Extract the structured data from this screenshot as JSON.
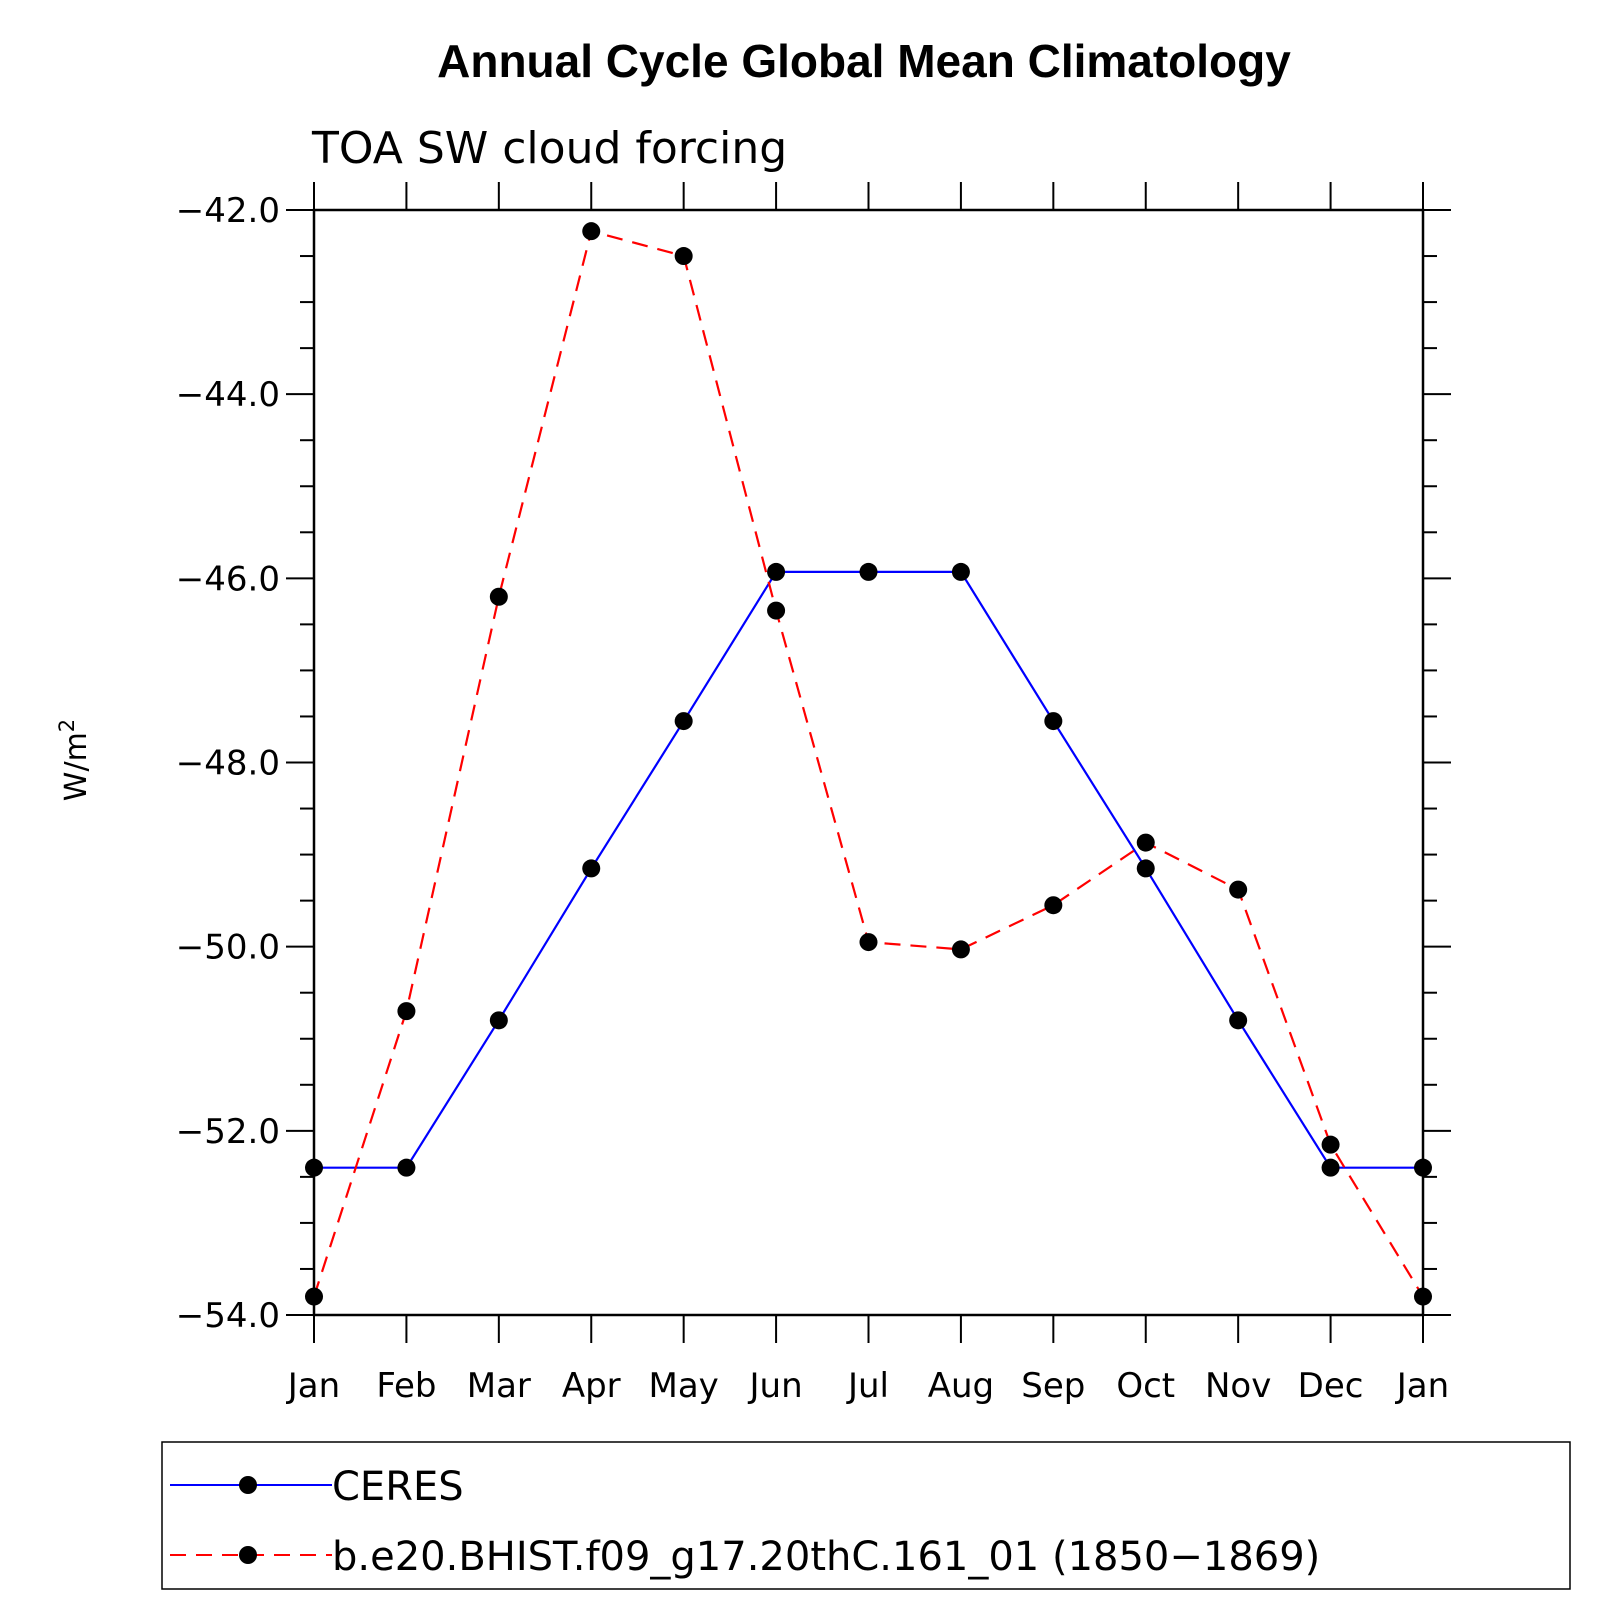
{
  "chart_data": {
    "type": "line",
    "title": "Annual Cycle Global Mean Climatology",
    "subtitle": "TOA SW cloud forcing",
    "ylabel": "W/m",
    "ylabel_superscript": "2",
    "xlabel": "",
    "categories": [
      "Jan",
      "Feb",
      "Mar",
      "Apr",
      "May",
      "Jun",
      "Jul",
      "Aug",
      "Sep",
      "Oct",
      "Nov",
      "Dec",
      "Jan"
    ],
    "ylim": [
      -54.0,
      -42.0
    ],
    "yticks": [
      "-42.0",
      "-44.0",
      "-46.0",
      "-48.0",
      "-50.0",
      "-52.0",
      "-54.0"
    ],
    "ytick_values": [
      -42,
      -44,
      -46,
      -48,
      -50,
      -52,
      -54
    ],
    "grid": false,
    "legend_position": "bottom",
    "series": [
      {
        "name": "CERES",
        "color": "#0000ff",
        "style": "solid",
        "marker": "filled-circle",
        "values": [
          -52.4,
          -52.4,
          -50.8,
          -49.15,
          -47.55,
          -45.93,
          -45.93,
          -45.93,
          -47.55,
          -49.15,
          -50.8,
          -52.4,
          -52.4
        ]
      },
      {
        "name": "b.e20.BHIST.f09_g17.20thC.161_01 (1850−1869)",
        "color": "#ff0000",
        "style": "dashed",
        "marker": "filled-circle",
        "values": [
          -53.8,
          -50.7,
          -46.2,
          -42.23,
          -42.5,
          -46.35,
          -49.95,
          -50.03,
          -49.55,
          -48.87,
          -49.38,
          -52.15,
          -53.8
        ]
      }
    ]
  }
}
